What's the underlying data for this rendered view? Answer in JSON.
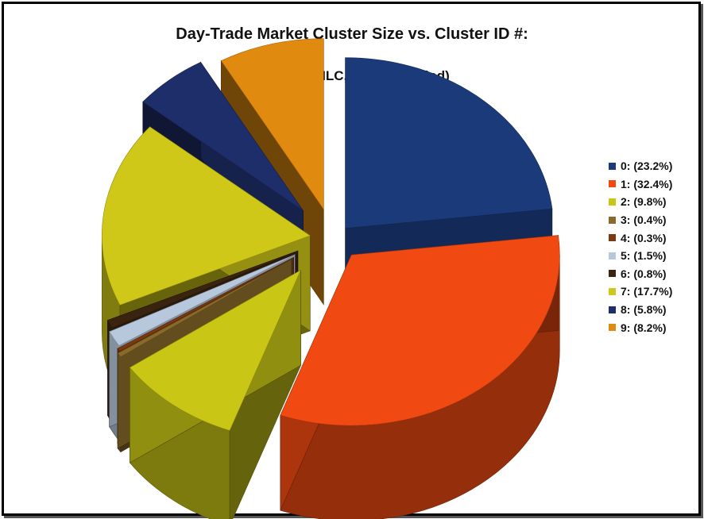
{
  "chart_data": {
    "type": "pie",
    "title": "Day-Trade Market Cluster Size vs. Cluster ID #:",
    "subtitle": "(10 min OHLC, 10-Year Period)",
    "legend_position": "right",
    "slices": [
      {
        "label": "0: (23.2%)",
        "value": 23.2,
        "color": "#1a3a7a"
      },
      {
        "label": "1: (32.4%)",
        "value": 32.4,
        "color": "#f04a12"
      },
      {
        "label": "2: (9.8%)",
        "value": 9.8,
        "color": "#c9c616"
      },
      {
        "label": "3: (0.4%)",
        "value": 0.4,
        "color": "#8a6a2a"
      },
      {
        "label": "4: (0.3%)",
        "value": 0.3,
        "color": "#7a3a10"
      },
      {
        "label": "5: (1.5%)",
        "value": 1.5,
        "color": "#b8c8dc"
      },
      {
        "label": "6: (0.8%)",
        "value": 0.8,
        "color": "#3a2410"
      },
      {
        "label": "7: (17.7%)",
        "value": 17.7,
        "color": "#cfc818"
      },
      {
        "label": "8: (5.8%)",
        "value": 5.8,
        "color": "#1e2e6a"
      },
      {
        "label": "9: (8.2%)",
        "value": 8.2,
        "color": "#e08a10"
      }
    ]
  }
}
